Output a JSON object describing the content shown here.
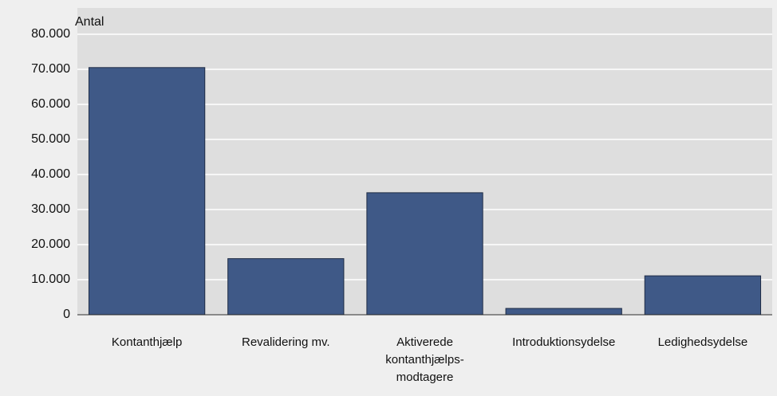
{
  "chart_data": {
    "type": "bar",
    "y_label": "Antal",
    "categories": [
      "Kontanthjælp",
      "Revalidering mv.",
      "Aktiverede kontanthjælps-modtagere",
      "Introduktionsydelse",
      "Ledighedsydelse"
    ],
    "values": [
      70500,
      16000,
      34800,
      1800,
      11100
    ],
    "color": "#3f5987",
    "ylim": [
      0,
      80000
    ],
    "yticks": [
      0,
      {
        "value": 10000,
        "label": "10.000"
      },
      {
        "value": 20000,
        "label": "20.000"
      },
      {
        "value": 30000,
        "label": "30.000"
      },
      {
        "value": 40000,
        "label": "40.000"
      },
      {
        "value": 50000,
        "label": "50.000"
      },
      {
        "value": 60000,
        "label": "60.000"
      },
      {
        "value": 70000,
        "label": "70.000"
      },
      {
        "value": 80000,
        "label": "80.000"
      }
    ],
    "grid": true
  }
}
